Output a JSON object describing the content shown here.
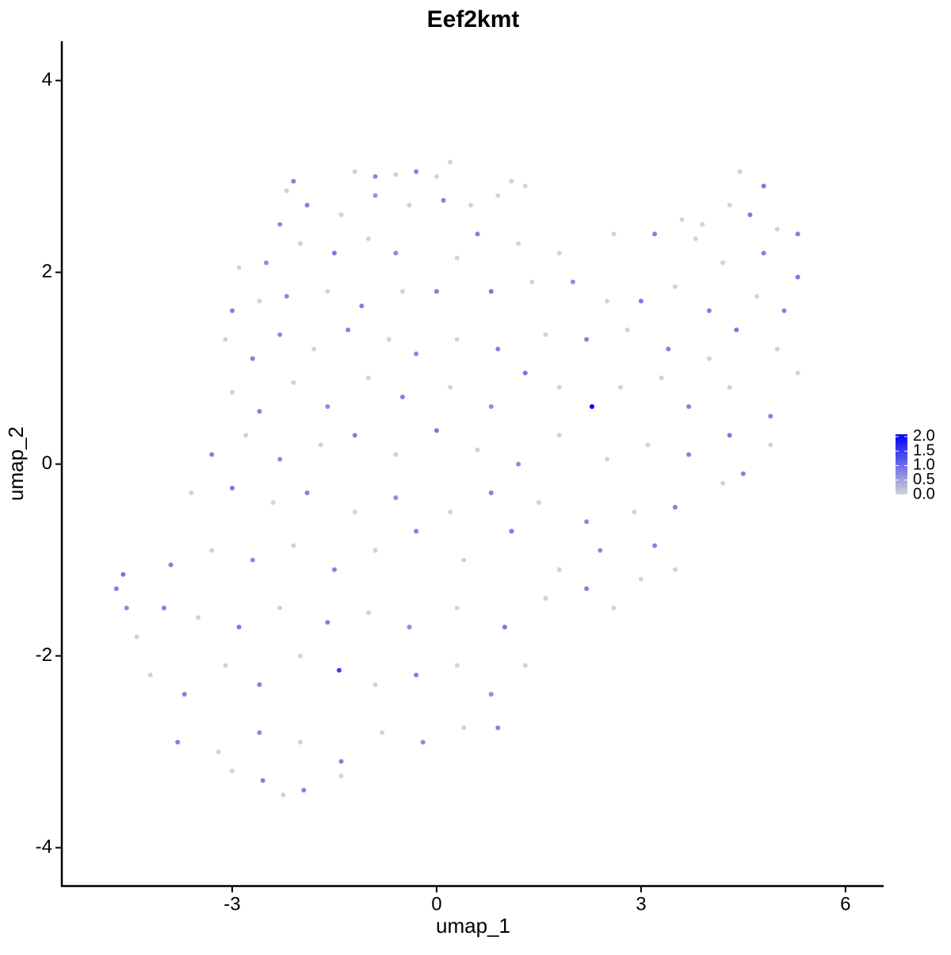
{
  "chart_data": {
    "type": "scatter",
    "title": "Eef2kmt",
    "x_label": "umap_1",
    "y_label": "umap_2",
    "xlim": [
      -5.5,
      6.56
    ],
    "ylim": [
      -4.4,
      4.41
    ],
    "xticks": [
      -3,
      0,
      3,
      6
    ],
    "yticks": [
      -4,
      -2,
      0,
      2,
      4
    ],
    "color_low": "#d3d3d3",
    "color_high": "#0000ff",
    "colorlim": [
      0,
      2.08
    ],
    "colorticks": [
      {
        "value": 0,
        "label": "0.0"
      },
      {
        "value": 0.5,
        "label": "0.5"
      },
      {
        "value": 1,
        "label": "1.0"
      },
      {
        "value": 1.5,
        "label": "1.5"
      },
      {
        "value": 2,
        "label": "2.0"
      }
    ],
    "x": [
      -2.1,
      -1.2,
      -0.9,
      -0.6,
      -0.3,
      0.0,
      0.2,
      1.1,
      -2.2,
      4.45,
      4.8,
      -2.3,
      -1.9,
      -1.4,
      -0.9,
      -0.4,
      0.1,
      0.5,
      0.9,
      1.3,
      4.3,
      4.6,
      5.0,
      5.3,
      3.6,
      3.9,
      -2.9,
      -2.5,
      -2.0,
      -1.5,
      -1.0,
      -0.6,
      0.3,
      0.6,
      1.2,
      1.8,
      2.6,
      3.2,
      3.8,
      4.2,
      4.8,
      5.3,
      -3.0,
      -2.6,
      -2.2,
      -1.6,
      -1.1,
      -0.5,
      0.0,
      0.8,
      1.4,
      2.0,
      2.5,
      3.0,
      3.5,
      4.0,
      4.7,
      5.1,
      -3.1,
      -2.7,
      -2.3,
      -1.8,
      -1.3,
      -0.7,
      -0.3,
      0.3,
      0.9,
      1.6,
      2.2,
      2.8,
      3.4,
      4.0,
      4.4,
      5.0,
      -3.0,
      -2.6,
      -2.1,
      -1.6,
      -1.0,
      -0.5,
      0.2,
      0.8,
      1.3,
      1.8,
      2.28,
      2.7,
      3.3,
      3.7,
      4.3,
      4.9,
      5.3,
      -3.3,
      -2.8,
      -2.3,
      -1.7,
      -1.2,
      -0.6,
      0.0,
      0.6,
      1.2,
      1.8,
      2.5,
      3.1,
      3.7,
      4.3,
      4.9,
      -3.6,
      -3.0,
      -2.4,
      -1.9,
      -1.2,
      -0.6,
      0.2,
      0.8,
      1.5,
      2.2,
      2.9,
      3.5,
      4.2,
      4.5,
      -3.9,
      -3.3,
      -2.7,
      -2.1,
      -1.5,
      -0.9,
      -0.3,
      0.4,
      1.1,
      1.8,
      2.4,
      3.2,
      3.5,
      3.0,
      -4.4,
      -4.0,
      -3.5,
      -2.9,
      -2.3,
      -1.6,
      -1.0,
      -0.4,
      0.3,
      1.0,
      1.6,
      2.2,
      2.6,
      -4.2,
      -3.7,
      -3.1,
      -2.6,
      -2.0,
      -1.43,
      -0.9,
      -0.3,
      0.3,
      0.8,
      1.3,
      -3.8,
      -3.2,
      -2.6,
      -2.0,
      -1.4,
      -0.8,
      -0.2,
      0.4,
      0.9,
      -3.0,
      -2.55,
      -2.25,
      -1.95,
      -1.4,
      -4.7,
      -4.6,
      -4.55
    ],
    "y": [
      2.95,
      3.05,
      3.0,
      3.02,
      3.05,
      3.0,
      3.15,
      2.95,
      2.85,
      3.05,
      2.9,
      2.5,
      2.7,
      2.6,
      2.8,
      2.7,
      2.75,
      2.7,
      2.8,
      2.9,
      2.7,
      2.6,
      2.45,
      2.4,
      2.55,
      2.5,
      2.05,
      2.1,
      2.3,
      2.2,
      2.35,
      2.2,
      2.15,
      2.4,
      2.3,
      2.2,
      2.4,
      2.4,
      2.35,
      2.1,
      2.2,
      1.95,
      1.6,
      1.7,
      1.75,
      1.8,
      1.65,
      1.8,
      1.8,
      1.8,
      1.9,
      1.9,
      1.7,
      1.7,
      1.85,
      1.6,
      1.75,
      1.6,
      1.3,
      1.1,
      1.35,
      1.2,
      1.4,
      1.3,
      1.15,
      1.3,
      1.2,
      1.35,
      1.3,
      1.4,
      1.2,
      1.1,
      1.4,
      1.2,
      0.75,
      0.55,
      0.85,
      0.6,
      0.9,
      0.7,
      0.8,
      0.6,
      0.95,
      0.8,
      0.6,
      0.8,
      0.9,
      0.6,
      0.8,
      0.5,
      0.95,
      0.1,
      0.3,
      0.05,
      0.2,
      0.3,
      0.1,
      0.35,
      0.15,
      0.0,
      0.3,
      0.05,
      0.2,
      0.1,
      0.3,
      0.2,
      -0.3,
      -0.25,
      -0.4,
      -0.3,
      -0.5,
      -0.35,
      -0.5,
      -0.3,
      -0.4,
      -0.6,
      -0.5,
      -0.45,
      -0.2,
      -0.1,
      -1.05,
      -0.9,
      -1.0,
      -0.85,
      -1.1,
      -0.9,
      -0.7,
      -1.0,
      -0.7,
      -1.1,
      -0.9,
      -0.85,
      -1.1,
      -1.2,
      -1.8,
      -1.5,
      -1.6,
      -1.7,
      -1.5,
      -1.65,
      -1.55,
      -1.7,
      -1.5,
      -1.7,
      -1.4,
      -1.3,
      -1.5,
      -2.2,
      -2.4,
      -2.1,
      -2.3,
      -2.0,
      -2.15,
      -2.3,
      -2.2,
      -2.1,
      -2.4,
      -2.1,
      -2.9,
      -3.0,
      -2.8,
      -2.9,
      -3.1,
      -2.8,
      -2.9,
      -2.75,
      -2.75,
      -3.2,
      -3.3,
      -3.45,
      -3.4,
      -3.25,
      -1.3,
      -1.15,
      -1.5
    ],
    "values": [
      0.8,
      0,
      0.7,
      0,
      0.8,
      0,
      0,
      0,
      0,
      0,
      0.9,
      0.7,
      0.8,
      0,
      0.6,
      0,
      0.8,
      0,
      0,
      0,
      0,
      0.9,
      0,
      0.8,
      0,
      0,
      0,
      0.7,
      0,
      0.9,
      0,
      0.7,
      0,
      0.8,
      0,
      0,
      0,
      0.8,
      0,
      0,
      0.8,
      0.9,
      0.8,
      0,
      0.7,
      0,
      0.8,
      0,
      0.8,
      0.9,
      0,
      0.7,
      0,
      0.9,
      0,
      0.8,
      0,
      0.8,
      0,
      0.8,
      0.7,
      0,
      0.8,
      0,
      0.7,
      0,
      0.8,
      0,
      0.8,
      0,
      0.8,
      0,
      0.9,
      0,
      0,
      0.8,
      0,
      0.7,
      0,
      0.8,
      0,
      0.7,
      0.9,
      0,
      2.08,
      0,
      0,
      0.8,
      0,
      0.8,
      0,
      0.8,
      0,
      0.7,
      0,
      0.8,
      0,
      0.9,
      0,
      0.7,
      0,
      0,
      0,
      0.8,
      0.9,
      0,
      0,
      0.9,
      0,
      0.8,
      0,
      0.7,
      0,
      0.8,
      0,
      0.7,
      0,
      0.8,
      0,
      0.8,
      0.8,
      0,
      0.7,
      0,
      0.8,
      0,
      0.8,
      0,
      0.9,
      0,
      0.7,
      0.8,
      0,
      0,
      0,
      0.8,
      0,
      0.9,
      0,
      0.8,
      0,
      0.7,
      0,
      0.9,
      0,
      0.8,
      0,
      0,
      0.8,
      0,
      0.8,
      0,
      1.5,
      0,
      0.8,
      0,
      0.7,
      0,
      0.8,
      0,
      0.7,
      0,
      0.8,
      0,
      0.7,
      0,
      0.8,
      0,
      0.8,
      0,
      0.8,
      0,
      0.8,
      0.9,
      0.7
    ]
  }
}
